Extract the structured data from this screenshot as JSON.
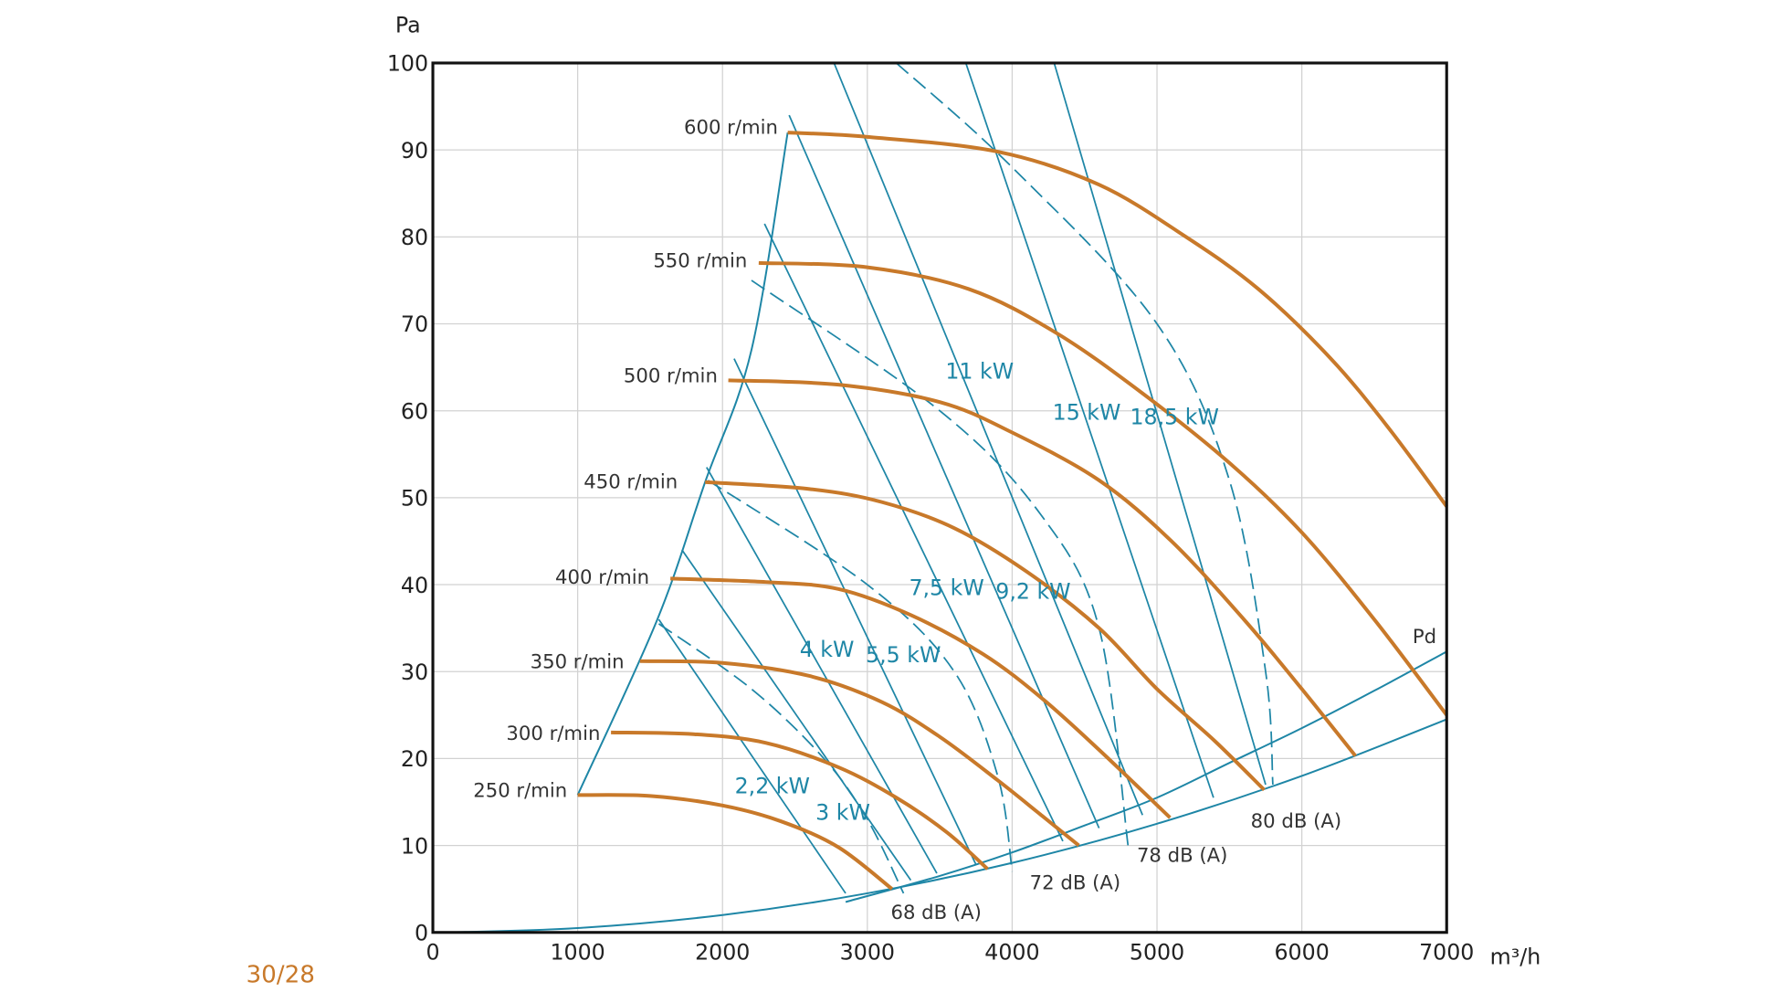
{
  "chart_data": {
    "type": "line",
    "xlabel": "m³/h",
    "ylabel": "Pa",
    "xlim": [
      0,
      7000
    ],
    "ylim": [
      0,
      100
    ],
    "xticks": [
      "0",
      "1000",
      "2000",
      "3000",
      "4000",
      "5000",
      "6000",
      "7000"
    ],
    "yticks": [
      "0",
      "10",
      "20",
      "30",
      "40",
      "50",
      "60",
      "70",
      "80",
      "90",
      "100"
    ],
    "grid": true,
    "colors": {
      "fan_curve": "#c8792a",
      "power": "#1e86a6",
      "grid": "#d2d2d2"
    },
    "fan_curves": [
      {
        "name": "600 r/min",
        "points": [
          [
            2450,
            92
          ],
          [
            3000,
            91.5
          ],
          [
            3900,
            89.8
          ],
          [
            4600,
            86
          ],
          [
            5200,
            80
          ],
          [
            5700,
            74
          ],
          [
            6200,
            66
          ],
          [
            6600,
            58
          ],
          [
            7000,
            49
          ]
        ]
      },
      {
        "name": "550 r/min",
        "points": [
          [
            2250,
            77
          ],
          [
            3000,
            76.5
          ],
          [
            3700,
            74
          ],
          [
            4300,
            69
          ],
          [
            4900,
            62
          ],
          [
            5500,
            54
          ],
          [
            6000,
            46
          ],
          [
            6500,
            36
          ],
          [
            7000,
            25
          ]
        ]
      },
      {
        "name": "500 r/min",
        "points": [
          [
            2040,
            63.5
          ],
          [
            2800,
            63
          ],
          [
            3500,
            61
          ],
          [
            4000,
            57.5
          ],
          [
            4600,
            52
          ],
          [
            5100,
            45
          ],
          [
            5600,
            36
          ],
          [
            6000,
            28
          ],
          [
            6370,
            20.3
          ]
        ]
      },
      {
        "name": "450 r/min",
        "points": [
          [
            1880,
            51.8
          ],
          [
            2600,
            51
          ],
          [
            3100,
            49.5
          ],
          [
            3600,
            46.5
          ],
          [
            4100,
            41.5
          ],
          [
            4600,
            35
          ],
          [
            5000,
            28
          ],
          [
            5400,
            22
          ],
          [
            5740,
            16.4
          ]
        ]
      },
      {
        "name": "400 r/min",
        "points": [
          [
            1640,
            40.7
          ],
          [
            2300,
            40.3
          ],
          [
            2800,
            39.5
          ],
          [
            3300,
            36.5
          ],
          [
            3800,
            32
          ],
          [
            4200,
            27
          ],
          [
            4600,
            21
          ],
          [
            5090,
            13.2
          ]
        ]
      },
      {
        "name": "350 r/min",
        "points": [
          [
            1430,
            31.2
          ],
          [
            2000,
            31
          ],
          [
            2600,
            29.5
          ],
          [
            3100,
            26.5
          ],
          [
            3500,
            22.5
          ],
          [
            3900,
            17.5
          ],
          [
            4200,
            13.5
          ],
          [
            4460,
            10
          ]
        ]
      },
      {
        "name": "300 r/min",
        "points": [
          [
            1230,
            23
          ],
          [
            1800,
            22.8
          ],
          [
            2300,
            21.8
          ],
          [
            2800,
            19
          ],
          [
            3200,
            15.5
          ],
          [
            3550,
            11.5
          ],
          [
            3830,
            7.3
          ]
        ]
      },
      {
        "name": "250 r/min",
        "points": [
          [
            1000,
            15.8
          ],
          [
            1500,
            15.7
          ],
          [
            2000,
            14.6
          ],
          [
            2400,
            12.8
          ],
          [
            2800,
            9.8
          ],
          [
            3170,
            5
          ]
        ]
      }
    ],
    "power_lines": [
      {
        "name": "2,2 kW",
        "points": [
          [
            1560,
            36
          ],
          [
            2850,
            4.5
          ]
        ]
      },
      {
        "name": "3 kW",
        "points": [
          [
            1720,
            44
          ],
          [
            3300,
            6
          ]
        ]
      },
      {
        "name": "4 kW",
        "points": [
          [
            1890,
            53.5
          ],
          [
            3480,
            6.8
          ]
        ]
      },
      {
        "name": "5,5 kW",
        "points": [
          [
            2080,
            66
          ],
          [
            3750,
            7.8
          ]
        ]
      },
      {
        "name": "7,5 kW",
        "points": [
          [
            2290,
            81.5
          ],
          [
            4350,
            10.5
          ]
        ]
      },
      {
        "name": "9,2 kW",
        "points": [
          [
            2460,
            94
          ],
          [
            4600,
            12
          ]
        ]
      },
      {
        "name": "11 kW",
        "points": [
          [
            2770,
            100
          ],
          [
            4900,
            13.5
          ]
        ]
      },
      {
        "name": "15 kW",
        "points": [
          [
            3680,
            100
          ],
          [
            5390,
            15.5
          ]
        ]
      },
      {
        "name": "18,5 kW",
        "points": [
          [
            4290,
            100
          ],
          [
            5750,
            17
          ]
        ]
      }
    ],
    "sound_lines": [
      {
        "name": "68 dB (A)",
        "points": [
          [
            1560,
            35.5
          ],
          [
            2200,
            28
          ],
          [
            2700,
            20
          ],
          [
            3000,
            13
          ],
          [
            3250,
            4.5
          ]
        ]
      },
      {
        "name": "72 dB (A)",
        "points": [
          [
            1900,
            52
          ],
          [
            3000,
            40
          ],
          [
            3600,
            30
          ],
          [
            3900,
            18
          ],
          [
            4000,
            7
          ]
        ]
      },
      {
        "name": "78 dB (A)",
        "points": [
          [
            2200,
            75
          ],
          [
            3500,
            60
          ],
          [
            4200,
            48
          ],
          [
            4600,
            35
          ],
          [
            4800,
            10
          ]
        ]
      },
      {
        "name": "80 dB (A)",
        "points": [
          [
            3200,
            100
          ],
          [
            4000,
            88
          ],
          [
            5000,
            70
          ],
          [
            5500,
            52
          ],
          [
            5750,
            30
          ],
          [
            5800,
            17
          ]
        ]
      }
    ],
    "surge_line": [
      [
        1000,
        15.8
      ],
      [
        1550,
        36
      ],
      [
        1880,
        51.8
      ],
      [
        2200,
        67
      ],
      [
        2450,
        92
      ]
    ],
    "pd_lines": {
      "name": "Pd",
      "lower": [
        [
          100,
          0
        ],
        [
          1000,
          0.5
        ],
        [
          2000,
          2
        ],
        [
          3000,
          4.5
        ],
        [
          4000,
          8
        ],
        [
          5000,
          12.5
        ],
        [
          6000,
          18
        ],
        [
          7000,
          24.5
        ]
      ],
      "upper": [
        [
          2850,
          3.5
        ],
        [
          3500,
          6.5
        ],
        [
          4000,
          9.2
        ],
        [
          4500,
          12.3
        ],
        [
          5000,
          15.5
        ],
        [
          5500,
          19.5
        ],
        [
          6000,
          23.5
        ],
        [
          6500,
          27.8
        ],
        [
          7000,
          32.3
        ]
      ]
    }
  },
  "page_label": "30/28"
}
